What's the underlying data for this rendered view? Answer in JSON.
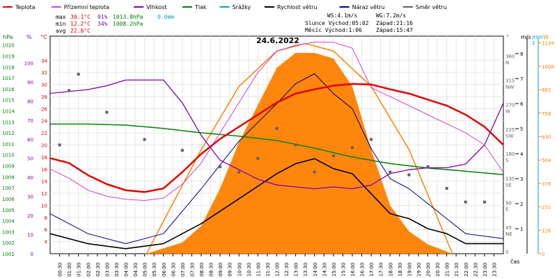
{
  "chart_data": {
    "type": "line",
    "title": "24.6.2022",
    "legend": [
      {
        "name": "Teplota",
        "color": "#e00000"
      },
      {
        "name": "Přízemní teplota",
        "color": "#d040d0"
      },
      {
        "name": "Vlhkost",
        "color": "#8000b0"
      },
      {
        "name": "Tlak",
        "color": "#008000"
      },
      {
        "name": "Srážky",
        "color": "#00a0d0"
      },
      {
        "name": "Rychlost větru",
        "color": "#000000"
      },
      {
        "name": "Náraz větru",
        "color": "#000080"
      },
      {
        "name": "Směr větru",
        "color": "#606060"
      }
    ],
    "stats": {
      "max_label": "max",
      "max_temp": "30.1°C",
      "max_hum": "91%",
      "max_press": "1013.8hPa",
      "max_rain": "0.0mm",
      "min_label": "min",
      "min_temp": "12.2°C",
      "min_hum": "34%",
      "min_press": "1008.2hPa",
      "avg_label": "avg",
      "avg_temp": "22.8°C",
      "ws": "WS:4.1m/s",
      "wg": "WG:7.2m/s",
      "sun": "Slunce Východ:05:02",
      "sun_set": "Západ:21:16",
      "moon": "Měsíc  Východ:1:06",
      "moon_set": "Západ:15:47"
    },
    "axis_units": {
      "hpa": "hPa",
      "pct": "%",
      "degc": "°C",
      "deg": "°",
      "ms": "m/s",
      "mm": "mm",
      "w": "W",
      "time": "čas"
    },
    "x_ticks": [
      "00:30",
      "01:00",
      "01:30",
      "02:00",
      "02:30",
      "03:00",
      "03:30",
      "04:00",
      "04:30",
      "05:00",
      "05:30",
      "06:00",
      "06:30",
      "07:00",
      "07:30",
      "08:00",
      "08:30",
      "09:00",
      "09:30",
      "10:00",
      "10:30",
      "11:00",
      "11:30",
      "12:00",
      "12:30",
      "13:00",
      "13:30",
      "14:00",
      "14:30",
      "15:00",
      "15:30",
      "16:00",
      "16:30",
      "17:00",
      "17:30",
      "18:00",
      "18:30",
      "19:00",
      "19:30",
      "20:00",
      "20:30",
      "21:00",
      "21:30",
      "22:00",
      "22:30",
      "23:00",
      "23:30"
    ],
    "hpa_ticks": [
      "1001",
      "1002",
      "1003",
      "1004",
      "1005",
      "1006",
      "1007",
      "1008",
      "1009",
      "1010",
      "1011",
      "1012",
      "1013",
      "1014",
      "1015",
      "1016",
      "1017",
      "1018",
      "1019",
      "1020"
    ],
    "pct_ticks": [
      "0",
      "10",
      "20",
      "30",
      "40",
      "50",
      "60",
      "70",
      "80",
      "90",
      "100"
    ],
    "degc_ticks": [
      "4",
      "6",
      "8",
      "10",
      "12",
      "14",
      "16",
      "18",
      "20",
      "22",
      "24",
      "26",
      "28",
      "30",
      "32",
      "34"
    ],
    "dir_ticks": [
      {
        "deg": "360",
        "dir": "N"
      },
      {
        "deg": "315",
        "dir": "NW"
      },
      {
        "deg": "270",
        "dir": "W"
      },
      {
        "deg": "225",
        "dir": "SW"
      },
      {
        "deg": "180",
        "dir": "S"
      },
      {
        "deg": "135",
        "dir": "SE"
      },
      {
        "deg": "90",
        "dir": "E"
      },
      {
        "deg": "45",
        "dir": "NE"
      },
      {
        "deg": "0",
        "dir": ""
      }
    ],
    "ms_ticks": [
      "8",
      "7",
      "6",
      "5",
      "4",
      "3",
      "2",
      "1"
    ],
    "mm_ticks": [
      "1"
    ],
    "w_ticks": [
      "0",
      "126",
      "252",
      "378",
      "504",
      "630",
      "756",
      "882",
      "1008",
      "1134"
    ],
    "teplota": [
      [
        0,
        17.8
      ],
      [
        1,
        17
      ],
      [
        2,
        15
      ],
      [
        3,
        13.5
      ],
      [
        4,
        12.5
      ],
      [
        5,
        12.2
      ],
      [
        6,
        12.8
      ],
      [
        7,
        15.5
      ],
      [
        8,
        18.5
      ],
      [
        9,
        21
      ],
      [
        10,
        23
      ],
      [
        11,
        25
      ],
      [
        12,
        27
      ],
      [
        13,
        28.5
      ],
      [
        14,
        29.2
      ],
      [
        15,
        29.8
      ],
      [
        16,
        30.1
      ],
      [
        17,
        30
      ],
      [
        18,
        29.2
      ],
      [
        19,
        28.5
      ],
      [
        20,
        27.5
      ],
      [
        21,
        26.5
      ],
      [
        22,
        25
      ],
      [
        23,
        23
      ],
      [
        24,
        20
      ]
    ],
    "prizemni": [
      [
        0,
        16
      ],
      [
        1,
        14.5
      ],
      [
        2,
        12.5
      ],
      [
        3,
        11.5
      ],
      [
        4,
        11
      ],
      [
        5,
        10.8
      ],
      [
        6,
        11.2
      ],
      [
        7,
        13.5
      ],
      [
        8,
        17
      ],
      [
        9,
        22
      ],
      [
        10,
        27
      ],
      [
        11,
        32
      ],
      [
        12,
        35.5
      ],
      [
        13,
        36.5
      ],
      [
        14,
        37
      ],
      [
        15,
        37
      ],
      [
        16,
        36
      ],
      [
        17,
        29.5
      ],
      [
        18,
        28
      ],
      [
        19,
        26.5
      ],
      [
        20,
        25
      ],
      [
        21,
        23.5
      ],
      [
        22,
        22
      ],
      [
        23,
        20
      ],
      [
        24,
        15.5
      ]
    ],
    "vlhkost": [
      [
        0,
        84
      ],
      [
        1,
        85
      ],
      [
        2,
        86
      ],
      [
        3,
        88
      ],
      [
        4,
        91
      ],
      [
        5,
        91
      ],
      [
        6,
        91
      ],
      [
        7,
        79
      ],
      [
        8,
        62
      ],
      [
        9,
        49
      ],
      [
        10,
        44
      ],
      [
        11,
        39
      ],
      [
        12,
        36
      ],
      [
        13,
        35
      ],
      [
        14,
        34
      ],
      [
        15,
        35
      ],
      [
        16,
        34
      ],
      [
        17,
        36
      ],
      [
        18,
        42
      ],
      [
        19,
        44
      ],
      [
        20,
        45
      ],
      [
        21,
        45
      ],
      [
        22,
        47
      ],
      [
        23,
        57
      ],
      [
        24,
        79
      ]
    ],
    "tlak": [
      [
        0,
        1012.8
      ],
      [
        2,
        1012.8
      ],
      [
        4,
        1012.7
      ],
      [
        6,
        1012.4
      ],
      [
        8,
        1012.0
      ],
      [
        10,
        1011.7
      ],
      [
        12,
        1011.3
      ],
      [
        14,
        1010.6
      ],
      [
        16,
        1009.8
      ],
      [
        18,
        1009.2
      ],
      [
        20,
        1008.8
      ],
      [
        22,
        1008.5
      ],
      [
        24,
        1008.2
      ]
    ],
    "rychlost": [
      [
        0,
        0.8
      ],
      [
        2,
        0.4
      ],
      [
        4,
        0.2
      ],
      [
        6,
        0.4
      ],
      [
        8,
        1.2
      ],
      [
        10,
        2.2
      ],
      [
        12,
        3.2
      ],
      [
        13,
        3.6
      ],
      [
        14,
        3.8
      ],
      [
        15,
        3.4
      ],
      [
        16,
        3.2
      ],
      [
        17,
        2.4
      ],
      [
        18,
        1.6
      ],
      [
        19,
        1.4
      ],
      [
        20,
        1.0
      ],
      [
        21,
        0.8
      ],
      [
        22,
        0.4
      ],
      [
        24,
        0.4
      ]
    ],
    "naraz": [
      [
        0,
        1.6
      ],
      [
        2,
        0.8
      ],
      [
        4,
        0.4
      ],
      [
        6,
        0.8
      ],
      [
        8,
        2.6
      ],
      [
        10,
        4.5
      ],
      [
        12,
        6
      ],
      [
        13,
        6.8
      ],
      [
        14,
        7.2
      ],
      [
        15,
        6.4
      ],
      [
        16,
        5.8
      ],
      [
        17,
        4.2
      ],
      [
        18,
        3
      ],
      [
        19,
        2.6
      ],
      [
        20,
        2
      ],
      [
        21,
        1.4
      ],
      [
        22,
        0.8
      ],
      [
        24,
        0.6
      ]
    ],
    "smer": [
      [
        0.5,
        200
      ],
      [
        1,
        300
      ],
      [
        1.5,
        330
      ],
      [
        3,
        260
      ],
      [
        5,
        210
      ],
      [
        7,
        190
      ],
      [
        9,
        160
      ],
      [
        10,
        150
      ],
      [
        11,
        175
      ],
      [
        12,
        230
      ],
      [
        13,
        200
      ],
      [
        14,
        150
      ],
      [
        15,
        180
      ],
      [
        16,
        195
      ],
      [
        17,
        210
      ],
      [
        18,
        150
      ],
      [
        19,
        145
      ],
      [
        20,
        160
      ],
      [
        21,
        120
      ],
      [
        22,
        95
      ],
      [
        23,
        95
      ]
    ],
    "zareni": [
      [
        5.1,
        0
      ],
      [
        7,
        60
      ],
      [
        8,
        150
      ],
      [
        9,
        350
      ],
      [
        10,
        600
      ],
      [
        11,
        800
      ],
      [
        12,
        1000
      ],
      [
        13,
        1080
      ],
      [
        14,
        1080
      ],
      [
        15,
        1050
      ],
      [
        16,
        900
      ],
      [
        17,
        560
      ],
      [
        18,
        260
      ],
      [
        19,
        120
      ],
      [
        20,
        50
      ],
      [
        21.3,
        0
      ]
    ],
    "teoreticke_zareni": [
      [
        5.1,
        0
      ],
      [
        8,
        560
      ],
      [
        10,
        900
      ],
      [
        12,
        1090
      ],
      [
        13.5,
        1130
      ],
      [
        15,
        1090
      ],
      [
        17,
        900
      ],
      [
        19,
        560
      ],
      [
        21.3,
        0
      ]
    ]
  }
}
